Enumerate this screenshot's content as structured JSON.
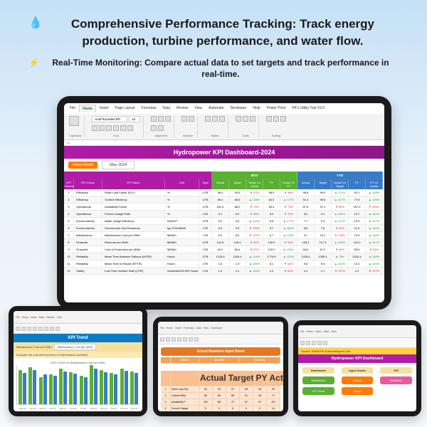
{
  "hero": {
    "line1": "Comprehensive Performance Tracking: Track energy production, turbine performance, and water flow.",
    "line2": "Real-Time Monitoring: Compare actual data to set targets and track performance in real-time."
  },
  "main": {
    "tabs": [
      "File",
      "Home",
      "Insert",
      "Page Layout",
      "Formulas",
      "Data",
      "Review",
      "View",
      "Automate",
      "Developer",
      "Help",
      "Power Pivot",
      "PK's Utility Tool V3.0"
    ],
    "font": "Arial Rounded MT",
    "fontsize": "10",
    "title": "Hydropower KPI Dashboard-2024",
    "select_label": "Select Month",
    "month": "May 2024",
    "hdr_groups": {
      "info": "",
      "mtd": "MTD",
      "ytd": "YTD"
    },
    "sub1": [
      "KPI Number",
      "KPI Group",
      "KPI Name",
      "Unit",
      "Type"
    ],
    "sub2": [
      "Actual",
      "Target",
      "Target Vs Actual",
      "PY",
      "Actual Vs PY"
    ],
    "sub3": [
      "Actual",
      "Target",
      "Actual Vs Target",
      "PY",
      "PY Vs Actual"
    ],
    "rows": [
      {
        "n": "1",
        "g": "Efficiency",
        "name": "Plant Load Factor (PLF)",
        "u": "%",
        "t": "UTB",
        "m": [
          "96.0",
          "93.0",
          "▼ 97%",
          "98.9",
          "▼ 96%"
        ],
        "y": [
          "96.6",
          "99.9",
          "▲ 117%",
          "92.1",
          "▲ 128%"
        ]
      },
      {
        "n": "2",
        "g": "Efficiency",
        "name": "Turbine Efficiency",
        "u": "%",
        "t": "UTB",
        "m": [
          "85.4",
          "86.6",
          "▲ 128%",
          "60.0",
          "▲ 147%"
        ],
        "y": [
          "91.0",
          "99.5",
          "▲ 107%",
          "77.8",
          "▲ 120%"
        ]
      },
      {
        "n": "3",
        "g": "Operational",
        "name": "Availability Factor",
        "u": "%",
        "t": "UTB",
        "m": [
          "151.4",
          "88.2",
          "▼ 73%",
          "69.4",
          "▼ 73%"
        ],
        "y": [
          "87.6",
          "97.2",
          "▼ 95%",
          "107.0",
          "▼ 105%"
        ]
      },
      {
        "n": "4",
        "g": "Operational",
        "name": "Forced Outage Rate",
        "u": "%",
        "t": "LTB",
        "m": [
          "5.1",
          "5.0",
          "▼ 85%",
          "5.0",
          "▼ 79%"
        ],
        "y": [
          "6.3",
          "9.1",
          "▲ 184%",
          "14.7",
          "▲ 101%"
        ]
      },
      {
        "n": "5",
        "g": "Environmental",
        "name": "Water Usage Efficiency",
        "u": "kWh/m³",
        "t": "UTB",
        "m": [
          "5.0",
          "6.5",
          "▲ 125%",
          "6.6",
          "▲ 177%"
        ],
        "y": [
          "7.1",
          "9.3",
          "▲ 117%",
          "10.3",
          "▲ 107%"
        ]
      },
      {
        "n": "6",
        "g": "Environmental",
        "name": "Greenhouse Gas Emissions",
        "u": "kg CO2e/MWh",
        "t": "LTB",
        "m": [
          "6.6",
          "5.9",
          "▼ 105%",
          "6.7",
          "▲ 185%"
        ],
        "y": [
          "8.8",
          "7.8",
          "▼ 94%",
          "11.0",
          "▲ 101%"
        ]
      },
      {
        "n": "7",
        "g": "Maintenance",
        "name": "Maintenance Cost per MWh",
        "u": "$/MWh",
        "t": "LTB",
        "m": [
          "5.3",
          "6.0",
          "▼ 107%",
          "6.7",
          "▲ 119%"
        ],
        "y": [
          "9.7",
          "10.1",
          "▼ 116%",
          "10.9",
          "▲ 118%"
        ]
      },
      {
        "n": "8",
        "g": "Financial",
        "name": "Revenue per MWh",
        "u": "$/MWh",
        "t": "UTB",
        "m": [
          "114.9",
          "145.4",
          "▼ 92%",
          "130.9",
          "▼ 93%"
        ],
        "y": [
          "105.4",
          "117.5",
          "▲ 105%",
          "141.0",
          "▲ 107%"
        ]
      },
      {
        "n": "9",
        "g": "Financial",
        "name": "Cost of Production per MWh",
        "u": "$/MWh",
        "t": "LTB",
        "m": [
          "62.2",
          "65.4",
          "▼ 87%",
          "122.0",
          "▲ 105%"
        ],
        "y": [
          "69.6",
          "67.2",
          "▼ 90%",
          "65.5",
          "▼ 81%"
        ]
      },
      {
        "n": "10",
        "g": "Reliability",
        "name": "Mean Time Between Failures (MTBF)",
        "u": "Hours",
        "t": "UTB",
        "m": [
          "1215.6",
          "1525.4",
          "▲ 124%",
          "1776.8",
          "▲ 129%"
        ],
        "y": [
          "1315.6",
          "1255.4",
          "▲ 78%",
          "2024.4",
          "▲ 130%"
        ]
      },
      {
        "n": "11",
        "g": "Reliability",
        "name": "Mean Time to Repair (MTTR)",
        "u": "Hours",
        "t": "LTB",
        "m": [
          "1.8",
          "1.9",
          "▲ 155%",
          "8.1",
          "▼ 64%"
        ],
        "y": [
          "9.6",
          "9.9",
          "▲ 153%",
          "10.3",
          "▲ 101%"
        ]
      },
      {
        "n": "12",
        "g": "Safety",
        "name": "Lost Time Incident Rate (LTIR)",
        "u": "Incidents/200,000 Hours",
        "t": "LTB",
        "m": [
          "1.3",
          "1.2",
          "▲ 125%",
          "2.3",
          "▼ 80%"
        ],
        "y": [
          "2.4",
          "1.7",
          "▼ 117%",
          "1.2",
          "▼ 197%"
        ]
      }
    ],
    "col_widths": {
      "n": 14,
      "g": 40,
      "name": 88,
      "u": 48,
      "t": 18,
      "mc": 24,
      "yc": 24
    }
  },
  "trend": {
    "title": "KPI Trend",
    "selector": "Maintenance Cost per MWh",
    "desc": "Evaluate the cost-effectiveness of maintenance activities.",
    "chart_title": "MTD Trend for Maintenance Cost per MWh",
    "months": [
      "Jan-24",
      "Feb-24",
      "Mar-24",
      "Apr-24",
      "May-24",
      "Jun-24",
      "Jul-24",
      "Aug-24",
      "Sep-24",
      "Oct-24",
      "Nov-24",
      "Dec-24"
    ],
    "green_vals": [
      48,
      52,
      38,
      42,
      50,
      45,
      40,
      55,
      48,
      44,
      50,
      46
    ],
    "blue_vals": [
      44,
      48,
      42,
      40,
      46,
      43,
      38,
      50,
      45,
      42,
      47,
      44
    ]
  },
  "actual": {
    "title": "Actual Numbers Input Sheet",
    "month_label": "Month",
    "mtd": "MTD",
    "ytd": "YTD",
    "months": [
      "Jan 2024",
      "Feb 2024"
    ],
    "cols": [
      "Actual",
      "Target",
      "PY"
    ],
    "rows": [
      [
        "1",
        "Plant Load Fac",
        "96",
        "93",
        "97",
        "98",
        "96",
        "99"
      ],
      [
        "2",
        "Turbine Effici",
        "85",
        "86",
        "88",
        "91",
        "99",
        "77"
      ],
      [
        "3",
        "Availability F",
        "151",
        "88",
        "73",
        "87",
        "97",
        "107"
      ],
      [
        "4",
        "Forced Outage",
        "5",
        "5",
        "6",
        "6",
        "9",
        "14"
      ]
    ]
  },
  "nav": {
    "source": "Source: WWW.PK-AnExcelExpert.Com",
    "title": "Hydropower KPI Dashboard",
    "col_headers": [
      "Dashboard",
      "Input sheets",
      "KPI"
    ],
    "buttons": [
      [
        "Dashboard",
        "Actual",
        "Definition"
      ],
      [
        "KPI Trend",
        "Target",
        ""
      ]
    ]
  }
}
